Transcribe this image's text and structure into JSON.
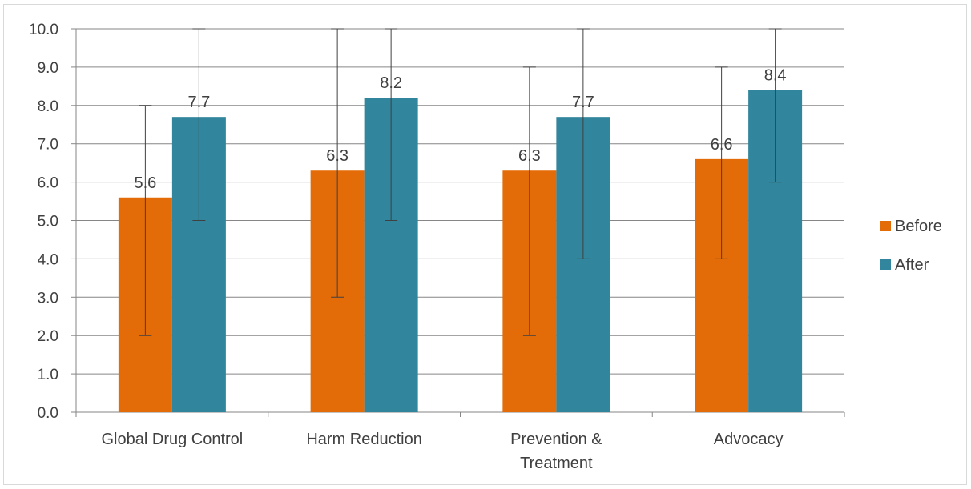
{
  "chart_data": {
    "type": "bar",
    "categories": [
      "Global Drug Control",
      "Harm Reduction",
      "Prevention & Treatment",
      "Advocacy"
    ],
    "category_lines": [
      [
        "Global Drug Control"
      ],
      [
        "Harm Reduction"
      ],
      [
        "Prevention &",
        "Treatment"
      ],
      [
        "Advocacy"
      ]
    ],
    "series": [
      {
        "name": "Before",
        "color": "#e36c09",
        "values": [
          5.6,
          6.3,
          6.3,
          6.6
        ],
        "labels": [
          "5.6",
          "6.3",
          "6.3",
          "6.6"
        ],
        "error_low": [
          2.0,
          3.0,
          2.0,
          4.0
        ],
        "error_high": [
          8.0,
          10.0,
          9.0,
          9.0
        ]
      },
      {
        "name": "After",
        "color": "#31859c",
        "values": [
          7.7,
          8.2,
          7.7,
          8.4
        ],
        "labels": [
          "7.7",
          "8.2",
          "7.7",
          "8.4"
        ],
        "error_low": [
          5.0,
          5.0,
          4.0,
          6.0
        ],
        "error_high": [
          10.0,
          10.0,
          10.0,
          10.0
        ]
      }
    ],
    "y_ticks": [
      "0.0",
      "1.0",
      "2.0",
      "3.0",
      "4.0",
      "5.0",
      "6.0",
      "7.0",
      "8.0",
      "9.0",
      "10.0"
    ],
    "ylim": [
      0,
      10
    ],
    "grid": true,
    "legend_position": "right",
    "gridline_color": "#868686",
    "axis_color": "#868686",
    "error_bar_color": "#404040"
  }
}
